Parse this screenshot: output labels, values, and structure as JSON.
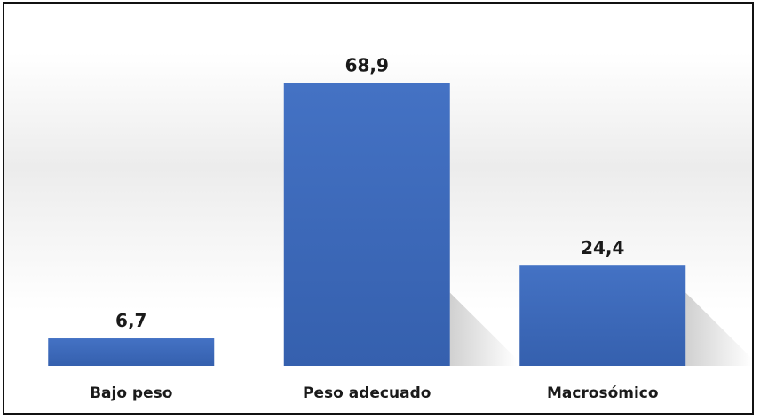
{
  "chart_data": {
    "type": "bar",
    "title": "",
    "xlabel": "",
    "ylabel": "",
    "categories": [
      "Bajo peso",
      "Peso adecuado",
      "Macrosómico"
    ],
    "values": [
      6.7,
      68.9,
      24.4
    ],
    "value_labels": [
      "6,7",
      "68,9",
      "24,4"
    ],
    "ylim": [
      0,
      80
    ],
    "grid": false,
    "legend": "none",
    "bar_color": "#4472c4",
    "bar_color_dark": "#3560ae"
  }
}
